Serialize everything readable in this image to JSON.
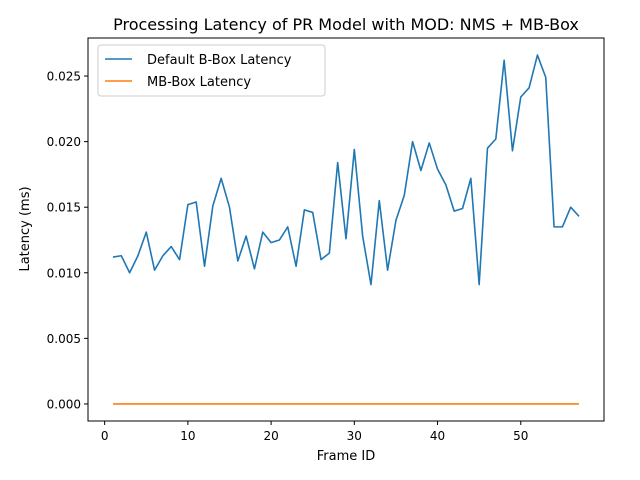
{
  "chart_data": {
    "type": "line",
    "title": "Processing Latency of PR Model with MOD: NMS + MB-Box",
    "xlabel": "Frame ID",
    "ylabel": "Latency (ms)",
    "xlim": [
      -2,
      60
    ],
    "ylim": [
      -0.0013,
      0.0279
    ],
    "xticks": [
      0,
      10,
      20,
      30,
      40,
      50
    ],
    "xtick_labels": [
      "0",
      "10",
      "20",
      "30",
      "40",
      "50"
    ],
    "yticks": [
      0,
      0.005,
      0.01,
      0.015,
      0.02,
      0.025
    ],
    "ytick_labels": [
      "0.000",
      "0.005",
      "0.010",
      "0.015",
      "0.020",
      "0.025"
    ],
    "grid": false,
    "legend_position": "upper left",
    "x": [
      1,
      2,
      3,
      4,
      5,
      6,
      7,
      8,
      9,
      10,
      11,
      12,
      13,
      14,
      15,
      16,
      17,
      18,
      19,
      20,
      21,
      22,
      23,
      24,
      25,
      26,
      27,
      28,
      29,
      30,
      31,
      32,
      33,
      34,
      35,
      36,
      37,
      38,
      39,
      40,
      41,
      42,
      43,
      44,
      45,
      46,
      47,
      48,
      49,
      50,
      51,
      52,
      53,
      54,
      55,
      56,
      57
    ],
    "series": [
      {
        "name": "Default B-Box Latency",
        "color": "#1f77b4",
        "values": [
          0.0112,
          0.0113,
          0.01,
          0.0113,
          0.0131,
          0.0102,
          0.0113,
          0.012,
          0.011,
          0.0152,
          0.0154,
          0.0105,
          0.0151,
          0.0172,
          0.015,
          0.0109,
          0.0128,
          0.0103,
          0.0131,
          0.0123,
          0.0125,
          0.0135,
          0.0105,
          0.0148,
          0.0146,
          0.011,
          0.0115,
          0.0184,
          0.0126,
          0.0194,
          0.0128,
          0.0091,
          0.0155,
          0.0102,
          0.014,
          0.0159,
          0.02,
          0.0178,
          0.0199,
          0.0179,
          0.0167,
          0.0147,
          0.0149,
          0.0172,
          0.0091,
          0.0195,
          0.0202,
          0.0262,
          0.0193,
          0.0234,
          0.0241,
          0.0266,
          0.0249,
          0.0135,
          0.0135,
          0.015,
          0.0143
        ]
      },
      {
        "name": "MB-Box Latency",
        "color": "#ff7f0e",
        "values": [
          0,
          0,
          0,
          0,
          0,
          0,
          0,
          0,
          0,
          0,
          0,
          0,
          0,
          0,
          0,
          0,
          0,
          0,
          0,
          0,
          0,
          0,
          0,
          0,
          0,
          0,
          0,
          0,
          0,
          0,
          0,
          0,
          0,
          0,
          0,
          0,
          0,
          0,
          0,
          0,
          0,
          0,
          0,
          0,
          0,
          0,
          0,
          0,
          0,
          0,
          0,
          0,
          0,
          0,
          0,
          0,
          0
        ]
      }
    ]
  }
}
